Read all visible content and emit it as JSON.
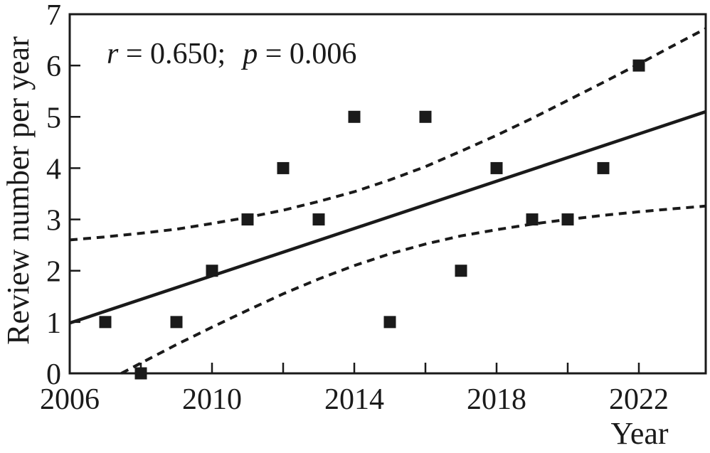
{
  "colors": {
    "ink": "#1a1a1a",
    "background": "#ffffff"
  },
  "chart_data": {
    "type": "scatter",
    "title": "",
    "xlabel": "Year",
    "ylabel": "Review number per year",
    "annotation": {
      "text": "r = 0.650;  p = 0.006",
      "r_symbol": "r",
      "r_rest": " = 0.650;",
      "p_symbol": "p",
      "p_rest": " = 0.006"
    },
    "marker": "filled-square",
    "grid": false,
    "legend": false,
    "xlim": [
      2006,
      2023.88
    ],
    "ylim": [
      0,
      7
    ],
    "x_tick_years": [
      2008,
      2010,
      2012,
      2014,
      2016,
      2018,
      2020,
      2022
    ],
    "x_labels": [
      {
        "year": 2006,
        "text": "2006"
      },
      {
        "year": 2010,
        "text": "2010"
      },
      {
        "year": 2014,
        "text": "2014"
      },
      {
        "year": 2018,
        "text": "2018"
      },
      {
        "year": 2022,
        "text": "2022"
      }
    ],
    "y_tick_values": [
      1,
      2,
      3,
      4,
      5,
      6
    ],
    "y_labels": [
      {
        "value": 0,
        "text": "0"
      },
      {
        "value": 1,
        "text": "1"
      },
      {
        "value": 2,
        "text": "2"
      },
      {
        "value": 3,
        "text": "3"
      },
      {
        "value": 4,
        "text": "4"
      },
      {
        "value": 5,
        "text": "5"
      },
      {
        "value": 6,
        "text": "6"
      },
      {
        "value": 7,
        "text": "7"
      }
    ],
    "points": [
      [
        2007,
        1
      ],
      [
        2008,
        0
      ],
      [
        2009,
        1
      ],
      [
        2010,
        2
      ],
      [
        2011,
        3
      ],
      [
        2012,
        4
      ],
      [
        2013,
        3
      ],
      [
        2014,
        5
      ],
      [
        2015,
        1
      ],
      [
        2016,
        5
      ],
      [
        2017,
        2
      ],
      [
        2018,
        4
      ],
      [
        2019,
        3
      ],
      [
        2020,
        3
      ],
      [
        2021,
        4
      ],
      [
        2022,
        6
      ]
    ],
    "regression_line": {
      "x": [
        2006,
        2023.88
      ],
      "y": [
        0.98,
        5.1
      ]
    },
    "ci_upper": [
      [
        2006,
        2.6
      ],
      [
        2007,
        2.66
      ],
      [
        2008,
        2.73
      ],
      [
        2009,
        2.81
      ],
      [
        2010,
        2.92
      ],
      [
        2011,
        3.04
      ],
      [
        2012,
        3.18
      ],
      [
        2013,
        3.35
      ],
      [
        2014,
        3.54
      ],
      [
        2015,
        3.77
      ],
      [
        2016,
        4.03
      ],
      [
        2017,
        4.33
      ],
      [
        2018,
        4.64
      ],
      [
        2019,
        4.97
      ],
      [
        2020,
        5.32
      ],
      [
        2021,
        5.67
      ],
      [
        2022,
        6.03
      ],
      [
        2023,
        6.4
      ],
      [
        2023.88,
        6.72
      ]
    ],
    "ci_lower": [
      [
        2007.45,
        0
      ],
      [
        2008,
        0.2
      ],
      [
        2009,
        0.56
      ],
      [
        2010,
        0.9
      ],
      [
        2011,
        1.23
      ],
      [
        2012,
        1.55
      ],
      [
        2013,
        1.84
      ],
      [
        2014,
        2.1
      ],
      [
        2015,
        2.33
      ],
      [
        2016,
        2.52
      ],
      [
        2017,
        2.68
      ],
      [
        2018,
        2.8
      ],
      [
        2019,
        2.91
      ],
      [
        2020,
        3.0
      ],
      [
        2021,
        3.08
      ],
      [
        2022,
        3.15
      ],
      [
        2023,
        3.21
      ],
      [
        2023.88,
        3.26
      ]
    ]
  }
}
